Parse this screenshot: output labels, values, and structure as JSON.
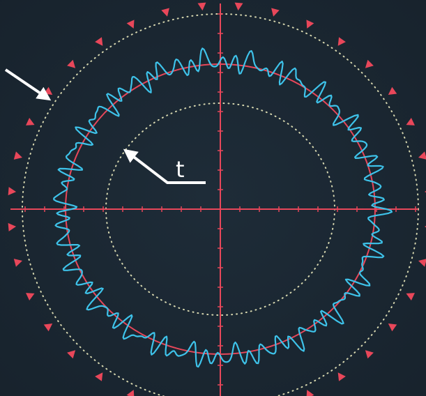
{
  "annotation": {
    "label": "t"
  }
}
